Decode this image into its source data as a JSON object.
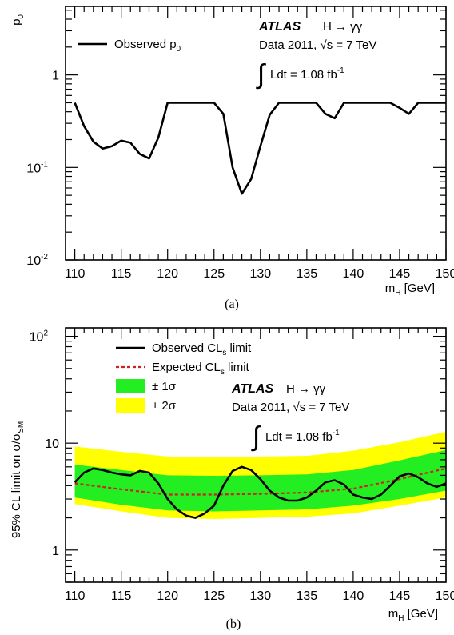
{
  "chart_data": [
    {
      "panel": "a",
      "type": "line",
      "caption": "(a)",
      "xlabel": "m",
      "xlabel_sub": "H",
      "xlabel_unit": " [GeV]",
      "ylabel": "p",
      "ylabel_sub": "0",
      "xlim": [
        109,
        150
      ],
      "ylim": [
        0.01,
        5.5
      ],
      "yscale": "log",
      "x_ticks": [
        110,
        115,
        120,
        125,
        130,
        135,
        140,
        145,
        150
      ],
      "x_tick_labels": [
        "110",
        "115",
        "120",
        "125",
        "130",
        "135",
        "140",
        "145",
        "150"
      ],
      "y_ticks": [
        {
          "value": 1,
          "base": "1",
          "exp": ""
        },
        {
          "value": 0.1,
          "base": "10",
          "exp": "-1"
        },
        {
          "value": 0.01,
          "base": "10",
          "exp": "-2"
        }
      ],
      "legend": [
        {
          "label": "Observed p",
          "sub": "0",
          "style": "line",
          "color": "#000000"
        }
      ],
      "annotations": {
        "experiment": "ATLAS",
        "process": "H → γγ",
        "data_prefix": "Data 2011, ",
        "sqrt": "√",
        "energy": "s = 7 TeV",
        "integral": "∫",
        "lumi_text": "Ldt = 1.08 fb",
        "lumi_exp": "-1"
      },
      "series": [
        {
          "name": "Observed p0",
          "color": "#000000",
          "x": [
            110,
            111,
            112,
            113,
            114,
            115,
            116,
            117,
            118,
            119,
            120,
            121,
            122,
            123,
            124,
            125,
            126,
            127,
            128,
            129,
            130,
            131,
            132,
            133,
            134,
            135,
            136,
            137,
            138,
            139,
            140,
            141,
            142,
            143,
            144,
            145,
            146,
            147,
            148,
            149,
            150
          ],
          "y": [
            0.5,
            0.28,
            0.19,
            0.16,
            0.17,
            0.195,
            0.185,
            0.14,
            0.125,
            0.21,
            0.5,
            0.5,
            0.5,
            0.5,
            0.5,
            0.5,
            0.38,
            0.1,
            0.052,
            0.075,
            0.17,
            0.37,
            0.5,
            0.5,
            0.5,
            0.5,
            0.5,
            0.38,
            0.34,
            0.5,
            0.5,
            0.5,
            0.5,
            0.5,
            0.5,
            0.44,
            0.38,
            0.5,
            0.5,
            0.5,
            0.5
          ]
        }
      ]
    },
    {
      "panel": "b",
      "type": "line",
      "caption": "(b)",
      "xlabel": "m",
      "xlabel_sub": "H",
      "xlabel_unit": " [GeV]",
      "ylabel": "95% CL limit on σ/σ",
      "ylabel_sub": "SM",
      "xlim": [
        109,
        150
      ],
      "ylim": [
        0.5,
        120
      ],
      "yscale": "log",
      "x_ticks": [
        110,
        115,
        120,
        125,
        130,
        135,
        140,
        145,
        150
      ],
      "x_tick_labels": [
        "110",
        "115",
        "120",
        "125",
        "130",
        "135",
        "140",
        "145",
        "150"
      ],
      "y_ticks": [
        {
          "value": 100,
          "base": "10",
          "exp": "2"
        },
        {
          "value": 10,
          "base": "10",
          "exp": ""
        },
        {
          "value": 1,
          "base": "1",
          "exp": ""
        }
      ],
      "legend": [
        {
          "label": "Observed CL",
          "sub": "s",
          "tail": " limit",
          "style": "line",
          "color": "#000000"
        },
        {
          "label": "Expected CL",
          "sub": "s",
          "tail": " limit",
          "style": "dashed",
          "color": "#cc2222"
        },
        {
          "label": "± 1σ",
          "sub": "",
          "tail": "",
          "style": "box",
          "color": "#22ee22"
        },
        {
          "label": "± 2σ",
          "sub": "",
          "tail": "",
          "style": "box",
          "color": "#ffff00"
        }
      ],
      "annotations": {
        "experiment": "ATLAS",
        "process": "H → γγ",
        "data_prefix": "Data 2011, ",
        "sqrt": "√",
        "energy": "s = 7 TeV",
        "integral": "∫",
        "lumi_text": "Ldt = 1.08 fb",
        "lumi_exp": "-1"
      },
      "band_x": [
        110,
        115,
        120,
        125,
        130,
        135,
        140,
        145,
        150
      ],
      "band_2sigma": {
        "color": "#ffff00",
        "lower": [
          2.7,
          2.3,
          2.0,
          1.95,
          2.0,
          2.05,
          2.2,
          2.6,
          3.1
        ],
        "upper": [
          9.3,
          8.3,
          7.5,
          7.4,
          7.5,
          7.6,
          8.5,
          10.2,
          12.8
        ]
      },
      "band_1sigma": {
        "color": "#22ee22",
        "lower": [
          3.1,
          2.65,
          2.35,
          2.3,
          2.35,
          2.4,
          2.6,
          3.0,
          3.6
        ],
        "upper": [
          6.3,
          5.6,
          5.0,
          4.95,
          5.0,
          5.1,
          5.6,
          6.9,
          8.6
        ]
      },
      "series": [
        {
          "name": "Expected CLs limit",
          "color": "#cc2222",
          "dashed": true,
          "x": [
            110,
            115,
            120,
            125,
            130,
            135,
            140,
            145,
            150
          ],
          "y": [
            4.2,
            3.7,
            3.3,
            3.3,
            3.35,
            3.45,
            3.75,
            4.6,
            5.8
          ]
        },
        {
          "name": "Observed CLs limit",
          "color": "#000000",
          "dashed": false,
          "x": [
            110,
            111,
            112,
            113,
            114,
            115,
            116,
            117,
            118,
            119,
            120,
            121,
            122,
            123,
            124,
            125,
            126,
            127,
            128,
            129,
            130,
            131,
            132,
            133,
            134,
            135,
            136,
            137,
            138,
            139,
            140,
            141,
            142,
            143,
            144,
            145,
            146,
            147,
            148,
            149,
            150
          ],
          "y": [
            4.3,
            5.3,
            5.8,
            5.6,
            5.3,
            5.1,
            5.0,
            5.5,
            5.3,
            4.2,
            3.0,
            2.4,
            2.1,
            2.0,
            2.2,
            2.6,
            4.0,
            5.5,
            6.0,
            5.6,
            4.6,
            3.6,
            3.1,
            2.9,
            2.9,
            3.1,
            3.6,
            4.3,
            4.5,
            4.1,
            3.3,
            3.1,
            3.0,
            3.3,
            4.0,
            4.9,
            5.2,
            4.8,
            4.2,
            3.9,
            4.2
          ]
        }
      ]
    }
  ]
}
